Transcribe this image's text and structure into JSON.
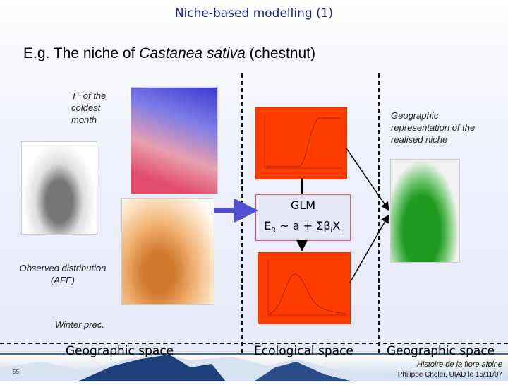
{
  "slide": {
    "title": "Niche-based modelling (1)",
    "subtitle_prefix": "E.g. The niche of ",
    "subtitle_species": "Castanea sativa",
    "subtitle_suffix": " (chestnut)",
    "labels": {
      "temperature": "T° of the coldest month",
      "geo_representation": "Geographic representation of the realised niche",
      "observed": "Observed distribution (AFE)",
      "winter_prec": "Winter prec."
    },
    "glm": {
      "title": "GLM",
      "formula_e": "E",
      "formula_sub_r": "R",
      "formula_mid": " ~ a + Σβ",
      "formula_sub_i": "i",
      "formula_x": "X",
      "formula_sub_i2": "i"
    },
    "sections": [
      "Geographic space",
      "Ecological space",
      "Geographic space"
    ],
    "footer": {
      "page_number": "55",
      "course": "Histoire de la flore alpine",
      "author": "Philippe Choler, UIAD le 15/11/07"
    }
  },
  "colors": {
    "title": "#1a1a9a",
    "chart_bg": "#ff3d00",
    "arrow": "#5050d0",
    "niche_map": "#1f9a1f"
  }
}
